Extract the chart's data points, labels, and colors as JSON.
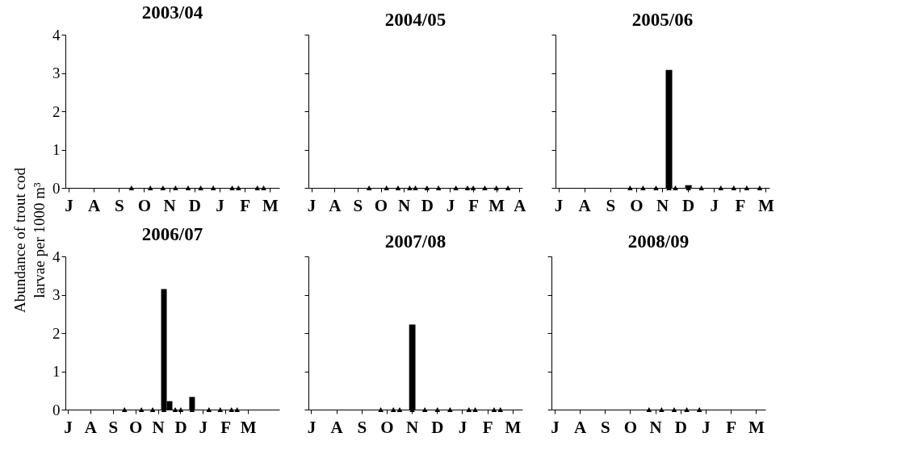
{
  "chart_data": [
    {
      "type": "scatter",
      "title": "2003/04",
      "ylabel": "Abundance of trout cod larvae per 1000 m³",
      "categories": [
        "J",
        null,
        null,
        null,
        "A",
        null,
        null,
        null,
        "S",
        null,
        null,
        null,
        "O",
        null,
        null,
        null,
        "N",
        null,
        null,
        null,
        "D",
        null,
        null,
        null,
        "J",
        null,
        null,
        null,
        "F",
        null,
        null,
        null,
        "M",
        null
      ],
      "ylim": [
        0,
        4
      ],
      "yticks": [
        0,
        1,
        2,
        3,
        4
      ],
      "grid": false,
      "marker": "triangle",
      "series": [
        {
          "color": "#000000",
          "values": [
            null,
            null,
            null,
            null,
            null,
            null,
            null,
            null,
            null,
            null,
            0,
            null,
            null,
            0,
            null,
            0,
            null,
            0,
            null,
            0,
            null,
            0,
            null,
            0,
            null,
            null,
            0,
            0,
            null,
            null,
            0,
            0,
            null,
            null
          ]
        }
      ]
    },
    {
      "type": "scatter",
      "title": "2004/05",
      "categories": [
        "J",
        null,
        null,
        null,
        "A",
        null,
        null,
        null,
        "S",
        null,
        null,
        null,
        "O",
        null,
        null,
        null,
        "N",
        null,
        null,
        null,
        "D",
        null,
        null,
        null,
        "J",
        null,
        null,
        null,
        "F",
        null,
        null,
        null,
        "M",
        null,
        null,
        null,
        "A"
      ],
      "ylim": [
        0,
        4
      ],
      "yticks": [
        {
          "value": 0,
          "label": null
        },
        {
          "value": 1,
          "label": null
        },
        {
          "value": 2,
          "label": null
        },
        {
          "value": 3,
          "label": null
        },
        {
          "value": 4,
          "label": null
        }
      ],
      "grid": false,
      "tick_labels": "x",
      "marker": "triangle",
      "series": [
        {
          "color": "#000000",
          "values": [
            null,
            null,
            null,
            null,
            null,
            null,
            null,
            null,
            null,
            null,
            0,
            null,
            null,
            0,
            null,
            0,
            null,
            0,
            0,
            null,
            0,
            null,
            0,
            null,
            null,
            0,
            null,
            0,
            0,
            null,
            0,
            null,
            0,
            null,
            0,
            null,
            null
          ]
        }
      ]
    },
    {
      "type": "bar",
      "title": "2005/06",
      "categories": [
        "J",
        null,
        null,
        null,
        "A",
        null,
        null,
        null,
        "S",
        null,
        null,
        null,
        "O",
        null,
        null,
        null,
        "N",
        null,
        null,
        null,
        "D",
        null,
        null,
        null,
        "J",
        null,
        null,
        null,
        "F",
        null,
        null,
        null,
        "M"
      ],
      "ylim": [
        0,
        4
      ],
      "yticks": [
        {
          "value": 0,
          "label": null
        },
        {
          "value": 1,
          "label": null
        },
        {
          "value": 2,
          "label": null
        },
        {
          "value": 3,
          "label": null
        },
        {
          "value": 4,
          "label": null
        }
      ],
      "grid": false,
      "tick_labels": "x",
      "marker": "triangle",
      "series": [
        {
          "color": "#000000",
          "values": [
            null,
            null,
            null,
            null,
            null,
            null,
            null,
            null,
            null,
            null,
            null,
            null,
            null,
            null,
            null,
            null,
            null,
            3.08,
            null,
            null,
            0.07,
            null,
            null,
            null,
            null,
            null,
            null,
            null,
            null,
            null,
            null,
            null,
            null
          ]
        },
        {
          "type": "scatter",
          "color": "#000000",
          "values": [
            null,
            null,
            null,
            null,
            null,
            null,
            null,
            null,
            null,
            null,
            null,
            0,
            null,
            0,
            null,
            0,
            null,
            0,
            0,
            null,
            0,
            null,
            0,
            null,
            null,
            0,
            null,
            0,
            null,
            0,
            null,
            0,
            null
          ]
        }
      ]
    },
    {
      "type": "bar",
      "title": "2006/07",
      "categories": [
        "J",
        null,
        null,
        null,
        "A",
        null,
        null,
        null,
        "S",
        null,
        null,
        null,
        "O",
        null,
        null,
        null,
        "N",
        null,
        null,
        null,
        "D",
        null,
        null,
        null,
        "J",
        null,
        null,
        null,
        "F",
        null,
        null,
        null,
        "M",
        null,
        null,
        null,
        null,
        null
      ],
      "ylim": [
        0,
        4
      ],
      "yticks": [
        0,
        1,
        2,
        3,
        4
      ],
      "grid": false,
      "marker": "triangle",
      "series": [
        {
          "color": "#000000",
          "values": [
            null,
            null,
            null,
            null,
            null,
            null,
            null,
            null,
            null,
            null,
            null,
            null,
            null,
            null,
            null,
            null,
            null,
            3.15,
            0.22,
            null,
            null,
            null,
            0.33,
            null,
            null,
            null,
            null,
            null,
            null,
            null,
            null,
            null,
            null,
            null,
            null,
            null,
            null,
            null
          ]
        },
        {
          "type": "scatter",
          "color": "#000000",
          "values": [
            null,
            null,
            null,
            null,
            null,
            null,
            null,
            null,
            null,
            null,
            0,
            null,
            null,
            0,
            null,
            0,
            null,
            0,
            null,
            0,
            0,
            null,
            0,
            null,
            null,
            0,
            null,
            0,
            null,
            0,
            0,
            null,
            null,
            null,
            null,
            null,
            null,
            null
          ]
        }
      ]
    },
    {
      "type": "bar",
      "title": "2007/08",
      "categories": [
        "J",
        null,
        null,
        null,
        "A",
        null,
        null,
        null,
        "S",
        null,
        null,
        null,
        "O",
        null,
        null,
        null,
        "N",
        null,
        null,
        null,
        "D",
        null,
        null,
        null,
        "J",
        null,
        null,
        null,
        "F",
        null,
        null,
        null,
        "M",
        null
      ],
      "ylim": [
        0,
        4
      ],
      "yticks": [
        {
          "value": 0,
          "label": null
        },
        {
          "value": 1,
          "label": null
        },
        {
          "value": 2,
          "label": null
        },
        {
          "value": 3,
          "label": null
        },
        {
          "value": 4,
          "label": null
        }
      ],
      "grid": false,
      "tick_labels": "x",
      "marker": "triangle",
      "series": [
        {
          "color": "#000000",
          "values": [
            null,
            null,
            null,
            null,
            null,
            null,
            null,
            null,
            null,
            null,
            null,
            null,
            null,
            null,
            null,
            null,
            2.22,
            null,
            null,
            null,
            null,
            null,
            null,
            null,
            null,
            null,
            null,
            null,
            null,
            null,
            null,
            null,
            null,
            null
          ]
        },
        {
          "type": "scatter",
          "color": "#000000",
          "values": [
            null,
            null,
            null,
            null,
            null,
            null,
            null,
            null,
            null,
            null,
            null,
            0,
            null,
            0,
            0,
            null,
            0,
            null,
            0,
            null,
            0,
            null,
            0,
            null,
            null,
            0,
            0,
            null,
            null,
            0,
            0,
            null,
            null,
            null
          ]
        }
      ]
    },
    {
      "type": "scatter",
      "title": "2008/09",
      "categories": [
        "J",
        null,
        null,
        null,
        "A",
        null,
        null,
        null,
        "S",
        null,
        null,
        null,
        "O",
        null,
        null,
        null,
        "N",
        null,
        null,
        null,
        "D",
        null,
        null,
        null,
        "J",
        null,
        null,
        null,
        "F",
        null,
        null,
        null,
        "M",
        null
      ],
      "ylim": [
        0,
        4
      ],
      "yticks": [
        {
          "value": 0,
          "label": null
        },
        {
          "value": 1,
          "label": null
        },
        {
          "value": 2,
          "label": null
        },
        {
          "value": 3,
          "label": null
        },
        {
          "value": 4,
          "label": null
        }
      ],
      "grid": false,
      "tick_labels": "x",
      "marker": "triangle",
      "series": [
        {
          "color": "#000000",
          "values": [
            null,
            null,
            null,
            null,
            null,
            null,
            null,
            null,
            null,
            null,
            null,
            null,
            null,
            null,
            null,
            0,
            null,
            0,
            null,
            0,
            null,
            0,
            null,
            0,
            null,
            null,
            null,
            null,
            null,
            null,
            null,
            null,
            null,
            null
          ]
        }
      ]
    }
  ]
}
